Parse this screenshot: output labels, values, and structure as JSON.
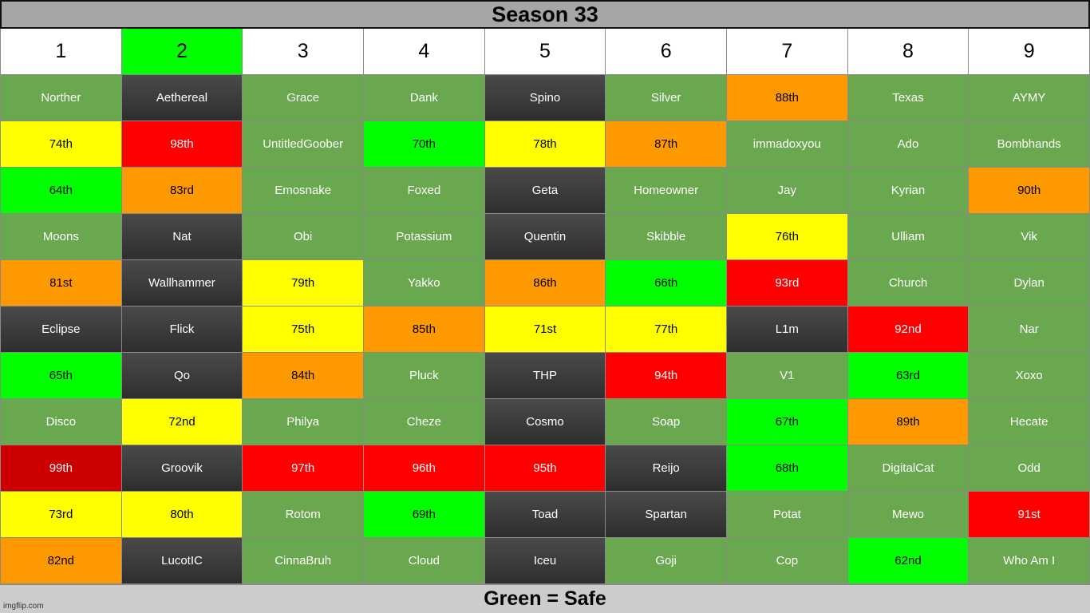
{
  "title": "Season 33",
  "footer": "Green = Safe",
  "watermark": "imgflip.com",
  "colors": {
    "safe": "#6aa84f",
    "out": "#3a3a3a",
    "green": "#00ff00",
    "yellow": "#ffff00",
    "orange": "#ff9900",
    "red": "#ff0000",
    "darkred": "#cc0000",
    "highlight_header": "#00ff00"
  },
  "columns": [
    {
      "label": "1",
      "highlight": false
    },
    {
      "label": "2",
      "highlight": true
    },
    {
      "label": "3",
      "highlight": false
    },
    {
      "label": "4",
      "highlight": false
    },
    {
      "label": "5",
      "highlight": false
    },
    {
      "label": "6",
      "highlight": false
    },
    {
      "label": "7",
      "highlight": false
    },
    {
      "label": "8",
      "highlight": false
    },
    {
      "label": "9",
      "highlight": false
    }
  ],
  "rows": [
    [
      {
        "text": "Norther",
        "status": "safe"
      },
      {
        "text": "Aethereal",
        "status": "out"
      },
      {
        "text": "Grace",
        "status": "safe"
      },
      {
        "text": "Dank",
        "status": "safe"
      },
      {
        "text": "Spino",
        "status": "out"
      },
      {
        "text": "Silver",
        "status": "safe"
      },
      {
        "text": "88th",
        "status": "orange"
      },
      {
        "text": "Texas",
        "status": "safe"
      },
      {
        "text": "AYMY",
        "status": "safe"
      }
    ],
    [
      {
        "text": "74th",
        "status": "yellow"
      },
      {
        "text": "98th",
        "status": "red"
      },
      {
        "text": "UntitledGoober",
        "status": "safe"
      },
      {
        "text": "70th",
        "status": "green"
      },
      {
        "text": "78th",
        "status": "yellow"
      },
      {
        "text": "87th",
        "status": "orange"
      },
      {
        "text": "immadoxyou",
        "status": "safe"
      },
      {
        "text": "Ado",
        "status": "safe"
      },
      {
        "text": "Bombhands",
        "status": "safe"
      }
    ],
    [
      {
        "text": "64th",
        "status": "green"
      },
      {
        "text": "83rd",
        "status": "orange"
      },
      {
        "text": "Emosnake",
        "status": "safe"
      },
      {
        "text": "Foxed",
        "status": "safe"
      },
      {
        "text": "Geta",
        "status": "out"
      },
      {
        "text": "Homeowner",
        "status": "safe"
      },
      {
        "text": "Jay",
        "status": "safe"
      },
      {
        "text": "Kyrian",
        "status": "safe"
      },
      {
        "text": "90th",
        "status": "orange"
      }
    ],
    [
      {
        "text": "Moons",
        "status": "safe"
      },
      {
        "text": "Nat",
        "status": "out"
      },
      {
        "text": "Obi",
        "status": "safe"
      },
      {
        "text": "Potassium",
        "status": "safe"
      },
      {
        "text": "Quentin",
        "status": "out"
      },
      {
        "text": "Skibble",
        "status": "safe"
      },
      {
        "text": "76th",
        "status": "yellow"
      },
      {
        "text": "Ulliam",
        "status": "safe"
      },
      {
        "text": "Vik",
        "status": "safe"
      }
    ],
    [
      {
        "text": "81st",
        "status": "orange"
      },
      {
        "text": "Wallhammer",
        "status": "out"
      },
      {
        "text": "79th",
        "status": "yellow"
      },
      {
        "text": "Yakko",
        "status": "safe"
      },
      {
        "text": "86th",
        "status": "orange"
      },
      {
        "text": "66th",
        "status": "green"
      },
      {
        "text": "93rd",
        "status": "red"
      },
      {
        "text": "Church",
        "status": "safe"
      },
      {
        "text": "Dylan",
        "status": "safe"
      }
    ],
    [
      {
        "text": "Eclipse",
        "status": "out"
      },
      {
        "text": "Flick",
        "status": "out"
      },
      {
        "text": "75th",
        "status": "yellow"
      },
      {
        "text": "85th",
        "status": "orange"
      },
      {
        "text": "71st",
        "status": "yellow"
      },
      {
        "text": "77th",
        "status": "yellow"
      },
      {
        "text": "L1m",
        "status": "out"
      },
      {
        "text": "92nd",
        "status": "red"
      },
      {
        "text": "Nar",
        "status": "safe"
      }
    ],
    [
      {
        "text": "65th",
        "status": "green"
      },
      {
        "text": "Qo",
        "status": "out"
      },
      {
        "text": "84th",
        "status": "orange"
      },
      {
        "text": "Pluck",
        "status": "safe"
      },
      {
        "text": "THP",
        "status": "out"
      },
      {
        "text": "94th",
        "status": "red"
      },
      {
        "text": "V1",
        "status": "safe"
      },
      {
        "text": "63rd",
        "status": "green"
      },
      {
        "text": "Xoxo",
        "status": "safe"
      }
    ],
    [
      {
        "text": "Disco",
        "status": "safe"
      },
      {
        "text": "72nd",
        "status": "yellow"
      },
      {
        "text": "Philya",
        "status": "safe"
      },
      {
        "text": "Cheze",
        "status": "safe"
      },
      {
        "text": "Cosmo",
        "status": "out"
      },
      {
        "text": "Soap",
        "status": "safe"
      },
      {
        "text": "67th",
        "status": "green"
      },
      {
        "text": "89th",
        "status": "orange"
      },
      {
        "text": "Hecate",
        "status": "safe"
      }
    ],
    [
      {
        "text": "99th",
        "status": "darkred"
      },
      {
        "text": "Groovik",
        "status": "out"
      },
      {
        "text": "97th",
        "status": "red"
      },
      {
        "text": "96th",
        "status": "red"
      },
      {
        "text": "95th",
        "status": "red"
      },
      {
        "text": "Reijo",
        "status": "out"
      },
      {
        "text": "68th",
        "status": "green"
      },
      {
        "text": "DigitalCat",
        "status": "safe"
      },
      {
        "text": "Odd",
        "status": "safe"
      }
    ],
    [
      {
        "text": "73rd",
        "status": "yellow"
      },
      {
        "text": "80th",
        "status": "yellow"
      },
      {
        "text": "Rotom",
        "status": "safe"
      },
      {
        "text": "69th",
        "status": "green"
      },
      {
        "text": "Toad",
        "status": "out"
      },
      {
        "text": "Spartan",
        "status": "out"
      },
      {
        "text": "Potat",
        "status": "safe"
      },
      {
        "text": "Mewo",
        "status": "safe"
      },
      {
        "text": "91st",
        "status": "red"
      }
    ],
    [
      {
        "text": "82nd",
        "status": "orange"
      },
      {
        "text": "LucotIC",
        "status": "out"
      },
      {
        "text": "CinnaBruh",
        "status": "safe"
      },
      {
        "text": "Cloud",
        "status": "safe"
      },
      {
        "text": "Iceu",
        "status": "out"
      },
      {
        "text": "Goji",
        "status": "safe"
      },
      {
        "text": "Cop",
        "status": "safe"
      },
      {
        "text": "62nd",
        "status": "green"
      },
      {
        "text": "Who Am I",
        "status": "safe"
      }
    ]
  ]
}
